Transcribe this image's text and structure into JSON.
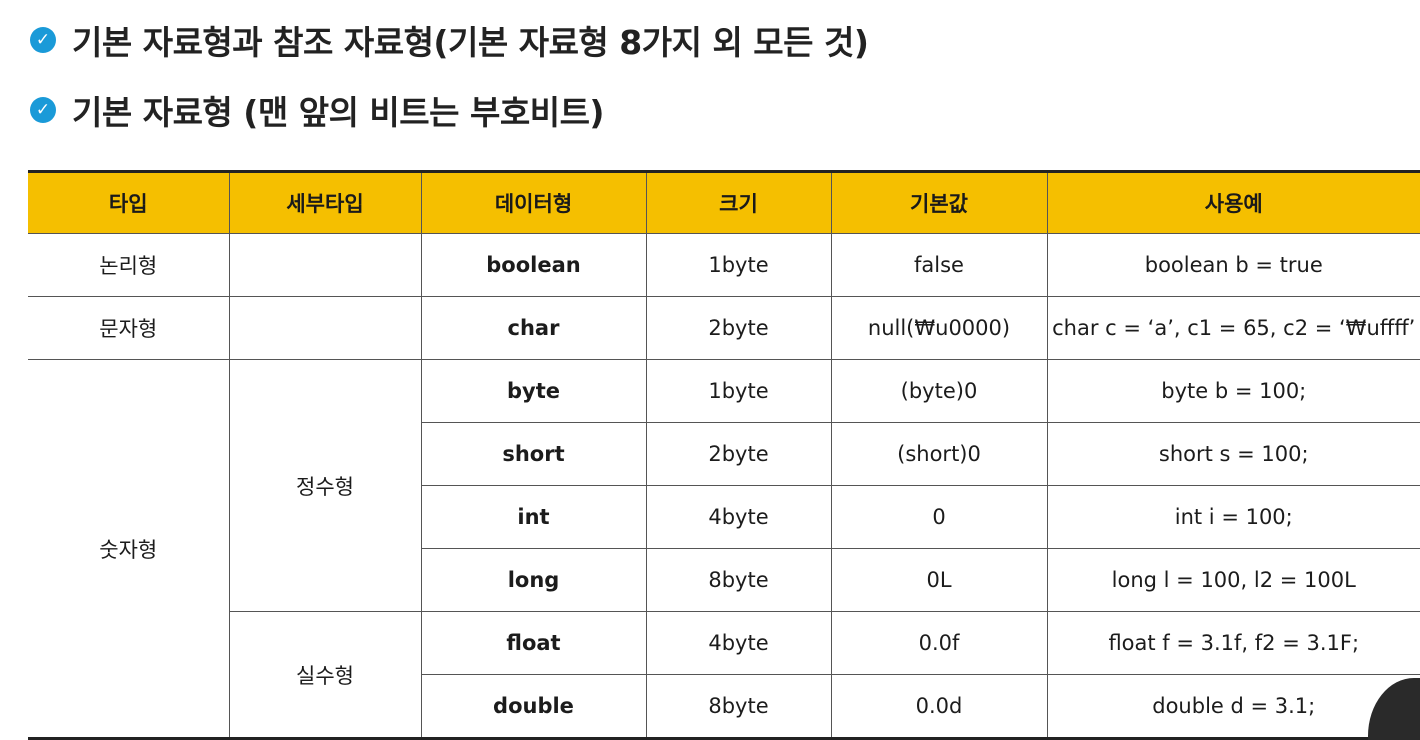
{
  "bullets": [
    "기본 자료형과 참조 자료형(기본 자료형 8가지 외 모든 것)",
    "기본 자료형 (맨 앞의 비트는 부호비트)"
  ],
  "table": {
    "headers": [
      "타입",
      "세부타입",
      "데이터형",
      "크기",
      "기본값",
      "사용예"
    ],
    "types": {
      "logical": "논리형",
      "character": "문자형",
      "numeric": "숫자형"
    },
    "subtypes": {
      "integer": "정수형",
      "real": "실수형"
    },
    "rows": [
      {
        "data_type": "boolean",
        "size": "1byte",
        "default": "false",
        "example": "boolean b = true"
      },
      {
        "data_type": "char",
        "size": "2byte",
        "default": "null(₩u0000)",
        "example": "char c = ‘a’, c1 = 65, c2 = ‘₩uffff’"
      },
      {
        "data_type": "byte",
        "size": "1byte",
        "default": "(byte)0",
        "example": "byte b = 100;"
      },
      {
        "data_type": "short",
        "size": "2byte",
        "default": "(short)0",
        "example": "short s = 100;"
      },
      {
        "data_type": "int",
        "size": "4byte",
        "default": "0",
        "example": "int i = 100;"
      },
      {
        "data_type": "long",
        "size": "8byte",
        "default": "0L",
        "example": "long l = 100,  l2 = 100L"
      },
      {
        "data_type": "float",
        "size": "4byte",
        "default": "0.0f",
        "example": "float f = 3.1f,  f2 = 3.1F;"
      },
      {
        "data_type": "double",
        "size": "8byte",
        "default": "0.0d",
        "example": "double d = 3.1;"
      }
    ]
  },
  "colors": {
    "header": "#f5bf00",
    "integer_types": "#f2ad98",
    "real_types": "#acd2e0",
    "check_icon": "#1a9ad8"
  },
  "icons": [
    "check-circle-icon"
  ]
}
